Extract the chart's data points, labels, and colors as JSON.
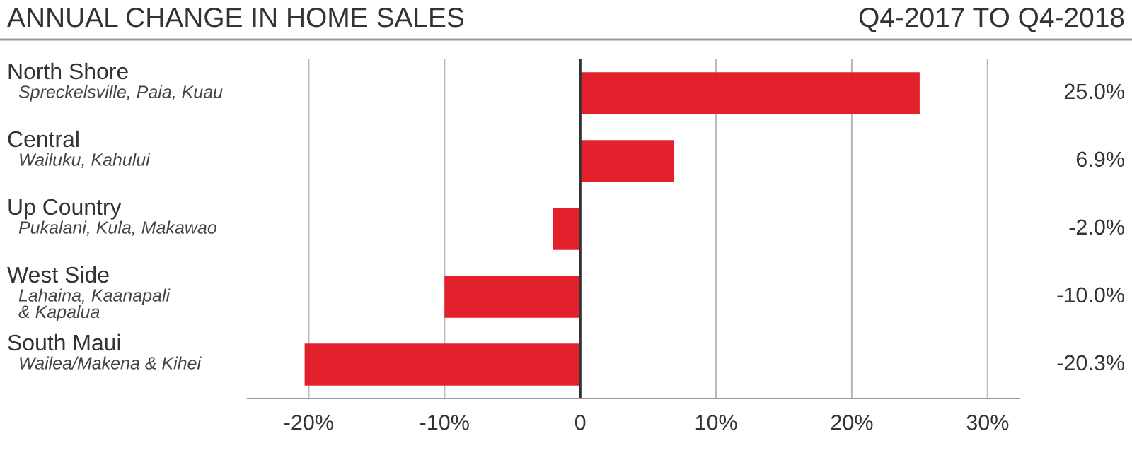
{
  "chart_data": {
    "type": "bar",
    "orientation": "horizontal",
    "title": "ANNUAL CHANGE IN HOME SALES",
    "subtitle": "Q4-2017 TO Q4-2018",
    "categories": [
      "North Shore\nSpreckelsville, Paia, Kuau",
      "Central\nWailuku, Kahului",
      "Up Country\nPukalani, Kula, Makawao",
      "West Side\nLahaina, Kaanapali\n& Kapalua",
      "South Maui\nWailea/Makena & Kihei"
    ],
    "values": [
      25.0,
      6.9,
      -2.0,
      -10.0,
      -20.3
    ],
    "value_labels": [
      "25.0%",
      "6.9%",
      "-2.0%",
      "-10.0%",
      "-20.3%"
    ],
    "color": "#e3212d",
    "xlim": [
      -24.5,
      32.3
    ],
    "xticks": [
      {
        "value": -20,
        "label": "-20%"
      },
      {
        "value": -10,
        "label": "-10%"
      },
      0,
      {
        "value": 10,
        "label": "10%"
      },
      {
        "value": 20,
        "label": "20%"
      },
      {
        "value": 30,
        "label": "30%"
      }
    ],
    "grid": "x",
    "ref_lines": [
      {
        "axis": "x",
        "value": 0,
        "color": "#333333"
      }
    ]
  }
}
